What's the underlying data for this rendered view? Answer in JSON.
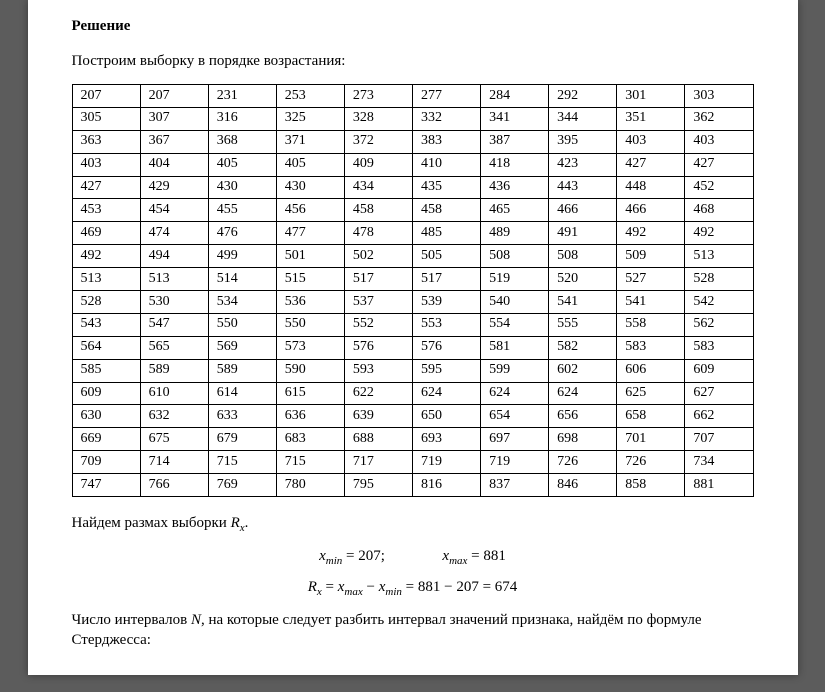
{
  "heading": "Решение",
  "intro": "Построим выборку в порядке возрастания:",
  "table": {
    "rows": [
      [
        207,
        207,
        231,
        253,
        273,
        277,
        284,
        292,
        301,
        303
      ],
      [
        305,
        307,
        316,
        325,
        328,
        332,
        341,
        344,
        351,
        362
      ],
      [
        363,
        367,
        368,
        371,
        372,
        383,
        387,
        395,
        403,
        403
      ],
      [
        403,
        404,
        405,
        405,
        409,
        410,
        418,
        423,
        427,
        427
      ],
      [
        427,
        429,
        430,
        430,
        434,
        435,
        436,
        443,
        448,
        452
      ],
      [
        453,
        454,
        455,
        456,
        458,
        458,
        465,
        466,
        466,
        468
      ],
      [
        469,
        474,
        476,
        477,
        478,
        485,
        489,
        491,
        492,
        492
      ],
      [
        492,
        494,
        499,
        501,
        502,
        505,
        508,
        508,
        509,
        513
      ],
      [
        513,
        513,
        514,
        515,
        517,
        517,
        519,
        520,
        527,
        528
      ],
      [
        528,
        530,
        534,
        536,
        537,
        539,
        540,
        541,
        541,
        542
      ],
      [
        543,
        547,
        550,
        550,
        552,
        553,
        554,
        555,
        558,
        562
      ],
      [
        564,
        565,
        569,
        573,
        576,
        576,
        581,
        582,
        583,
        583
      ],
      [
        585,
        589,
        589,
        590,
        593,
        595,
        599,
        602,
        606,
        609
      ],
      [
        609,
        610,
        614,
        615,
        622,
        624,
        624,
        624,
        625,
        627
      ],
      [
        630,
        632,
        633,
        636,
        639,
        650,
        654,
        656,
        658,
        662
      ],
      [
        669,
        675,
        679,
        683,
        688,
        693,
        697,
        698,
        701,
        707
      ],
      [
        709,
        714,
        715,
        715,
        717,
        719,
        719,
        726,
        726,
        734
      ],
      [
        747,
        766,
        769,
        780,
        795,
        816,
        837,
        846,
        858,
        881
      ]
    ]
  },
  "range_label": "Найдем размах выборки ",
  "range_var": "R",
  "range_sub": "x",
  "xmin_label": "x",
  "xmin_sub": "min",
  "xmin_val": "207",
  "xmax_label": "x",
  "xmax_sub": "max",
  "xmax_val": "881",
  "range_formula_lhs": "R",
  "range_formula_sub": "x",
  "range_formula_mid1": "x",
  "range_formula_mid1_sub": "max",
  "range_formula_mid2": "x",
  "range_formula_mid2_sub": "min",
  "range_diff": "881 − 207 = 674",
  "sturgess1": "Число интервалов ",
  "sturgess_var": "N",
  "sturgess2": ", на которые следует разбить интервал значений признака, найдём по формуле Стерджесса:"
}
